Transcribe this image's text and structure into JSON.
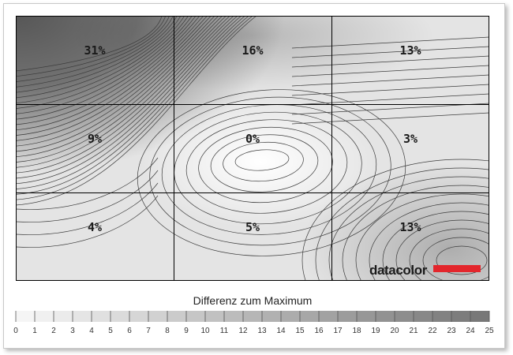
{
  "chart_data": {
    "type": "heatmap",
    "rows": 3,
    "cols": 3,
    "values": [
      [
        31,
        16,
        13
      ],
      [
        9,
        0,
        3
      ],
      [
        4,
        5,
        13
      ]
    ],
    "labels": [
      [
        "31%",
        "16%",
        "13%"
      ],
      [
        "9%",
        "0%",
        "3%"
      ],
      [
        "4%",
        "5%",
        "13%"
      ]
    ],
    "unit": "%",
    "legend": {
      "title": "Differenz zum Maximum",
      "min": 0,
      "max": 25,
      "ticks": [
        "0",
        "1",
        "2",
        "3",
        "4",
        "5",
        "6",
        "7",
        "8",
        "9",
        "10",
        "11",
        "12",
        "13",
        "14",
        "15",
        "16",
        "17",
        "18",
        "19",
        "20",
        "21",
        "22",
        "23",
        "24",
        "25"
      ]
    },
    "contour_lines": true,
    "colors": {
      "low": "#ffffff",
      "high": "#5a5a5a",
      "grid": "#000000",
      "contour": "#3c3c3c"
    }
  },
  "logo": {
    "text": "datacolor",
    "bar_color": "#e3262c"
  }
}
